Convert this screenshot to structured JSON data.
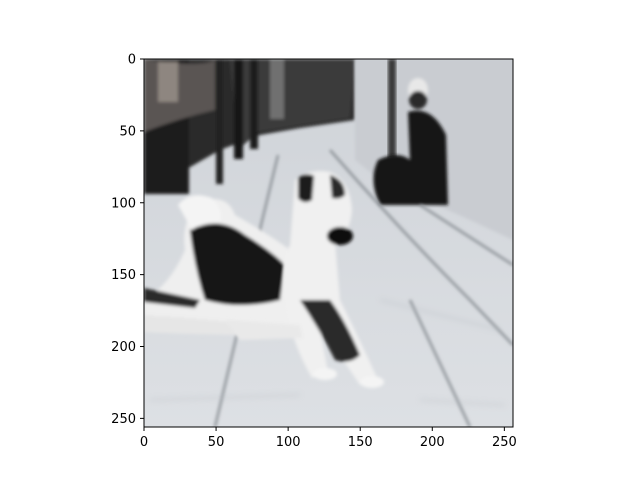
{
  "chart_data": {
    "type": "image",
    "title": "",
    "xlabel": "",
    "ylabel": "",
    "image_extent": [
      0,
      256,
      256,
      0
    ],
    "xlim": [
      0,
      256
    ],
    "ylim": [
      256,
      0
    ],
    "y_inverted": true,
    "x_ticks": [
      0,
      50,
      100,
      150,
      200,
      250
    ],
    "y_ticks": [
      0,
      50,
      100,
      150,
      200,
      250
    ],
    "x_tick_labels": [
      "0",
      "50",
      "100",
      "150",
      "200",
      "250"
    ],
    "y_tick_labels": [
      "0",
      "50",
      "100",
      "150",
      "200",
      "250"
    ],
    "grid": false,
    "content": "grayscale generated photo of two dogs lying on a sidewalk, a seated person in the upper right background",
    "colors": {
      "axis": "#000000",
      "sidewalk_light": "#d9dde2",
      "sidewalk_mid": "#c4c8ce",
      "shadow_dark": "#101010",
      "dog_white": "#f2f2f2"
    }
  }
}
